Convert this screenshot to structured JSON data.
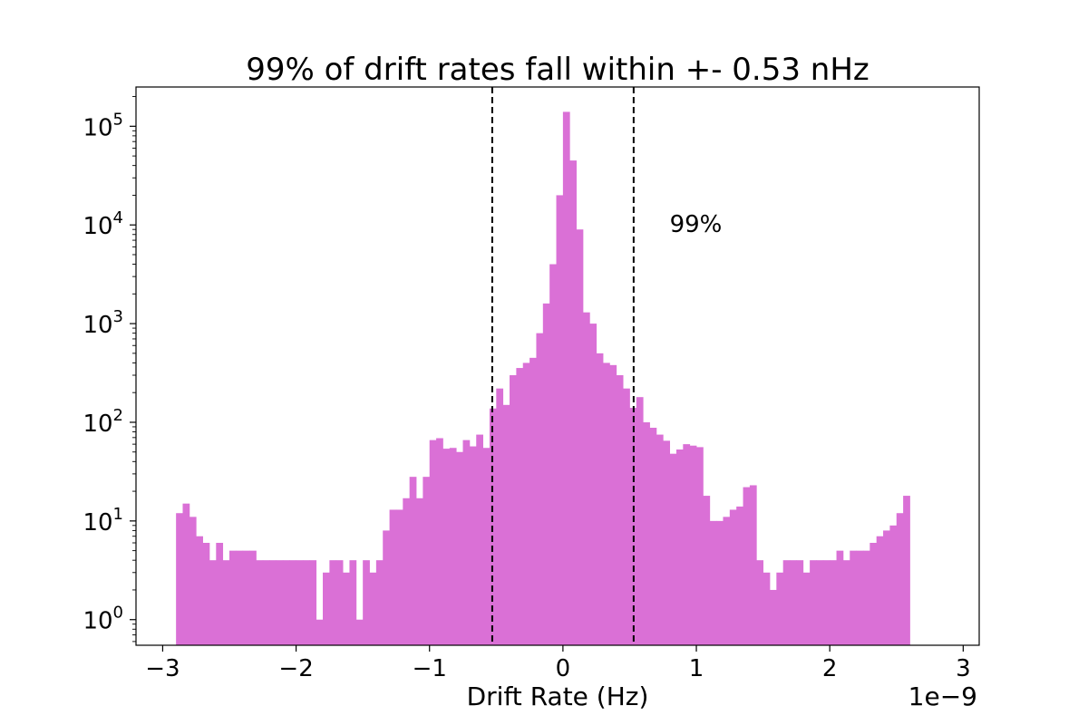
{
  "chart_data": {
    "type": "bar",
    "title": "99% of drift rates fall within +- 0.53 nHz",
    "xlabel": "Drift Rate (Hz)",
    "ylabel": "",
    "x_offset_label": "1e−9",
    "x_scale_factor": 1e-09,
    "xlim": [
      -3.2,
      3.12
    ],
    "ylim": [
      0.55,
      250000
    ],
    "yscale": "log",
    "grid": false,
    "bar_color": "#da70d6",
    "x_ticks": [
      {
        "value": -3,
        "label": "−3"
      },
      {
        "value": -2,
        "label": "−2"
      },
      {
        "value": -1,
        "label": "−1"
      },
      {
        "value": 0,
        "label": "0"
      },
      {
        "value": 1,
        "label": "1"
      },
      {
        "value": 2,
        "label": "2"
      },
      {
        "value": 3,
        "label": "3"
      }
    ],
    "y_ticks": [
      {
        "value": 1,
        "base": "10",
        "exp": "0"
      },
      {
        "value": 10,
        "base": "10",
        "exp": "1"
      },
      {
        "value": 100,
        "base": "10",
        "exp": "2"
      },
      {
        "value": 1000,
        "base": "10",
        "exp": "3"
      },
      {
        "value": 10000,
        "base": "10",
        "exp": "4"
      },
      {
        "value": 100000,
        "base": "10",
        "exp": "5"
      }
    ],
    "bin_start": -2.9,
    "bin_width": 0.05,
    "counts": [
      12,
      15,
      11,
      7,
      6,
      4,
      6,
      4,
      5,
      5,
      5,
      5,
      4,
      4,
      4,
      4,
      4,
      4,
      4,
      4,
      4,
      1,
      3,
      4,
      4,
      3,
      4,
      1,
      4,
      3,
      4,
      8,
      13,
      13,
      17,
      28,
      17,
      28,
      66,
      69,
      54,
      55,
      50,
      66,
      57,
      75,
      55,
      138,
      220,
      150,
      300,
      355,
      400,
      450,
      800,
      1600,
      4000,
      20000,
      140000,
      45000,
      9000,
      1300,
      1000,
      500,
      400,
      380,
      300,
      220,
      140,
      180,
      100,
      88,
      75,
      65,
      48,
      53,
      60,
      58,
      56,
      18,
      10,
      10,
      11,
      13,
      14,
      22,
      23,
      4,
      3,
      2,
      3,
      4,
      4,
      4,
      3,
      4,
      4,
      4,
      4,
      5,
      4,
      5,
      5,
      5,
      6,
      7,
      8,
      9,
      12,
      18
    ],
    "vlines": [
      {
        "x": -0.53,
        "style": "dashed",
        "color": "#000000"
      },
      {
        "x": 0.53,
        "style": "dashed",
        "color": "#000000"
      }
    ],
    "annotation": {
      "text": "99%",
      "x": 0.8,
      "y": 10000
    }
  }
}
